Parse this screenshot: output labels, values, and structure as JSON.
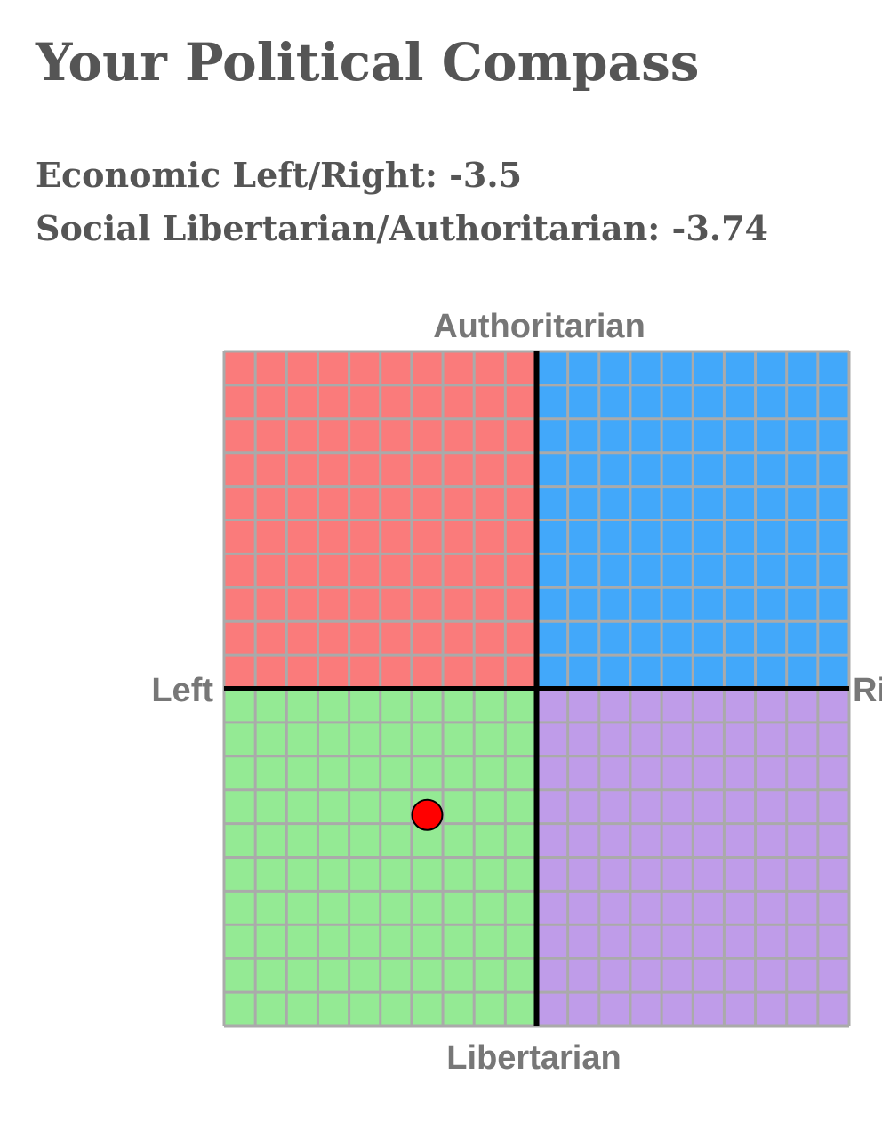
{
  "header": {
    "title": "Your Political Compass",
    "lines": [
      "Economic Left/Right: -3.5",
      "Social Libertarian/Authoritarian: -3.74"
    ]
  },
  "chart_data": {
    "type": "scatter",
    "axis_labels": {
      "top": "Authoritarian",
      "bottom": "Libertarian",
      "left": "Left",
      "right": "Right"
    },
    "series": [
      {
        "x": [
          -3.5
        ],
        "values": [
          -3.74
        ],
        "color": "#ff0000"
      }
    ],
    "xlim": [
      -10,
      10
    ],
    "ylim": [
      -10,
      10
    ],
    "xticks": [
      -10,
      -9,
      -8,
      -7,
      -6,
      -5,
      -4,
      -3,
      -2,
      -1,
      0,
      1,
      2,
      3,
      4,
      5,
      6,
      7,
      8,
      9,
      10
    ],
    "yticks": [
      -10,
      -9,
      -8,
      -7,
      -6,
      -5,
      -4,
      -3,
      -2,
      -1,
      0,
      1,
      2,
      3,
      4,
      5,
      6,
      7,
      8,
      9,
      10
    ],
    "grid": true,
    "quadrant_colors": {
      "top_left": "#fa7b7b",
      "top_right": "#42a8fa",
      "bottom_left": "#94ea94",
      "bottom_right": "#bf9ce9"
    }
  }
}
